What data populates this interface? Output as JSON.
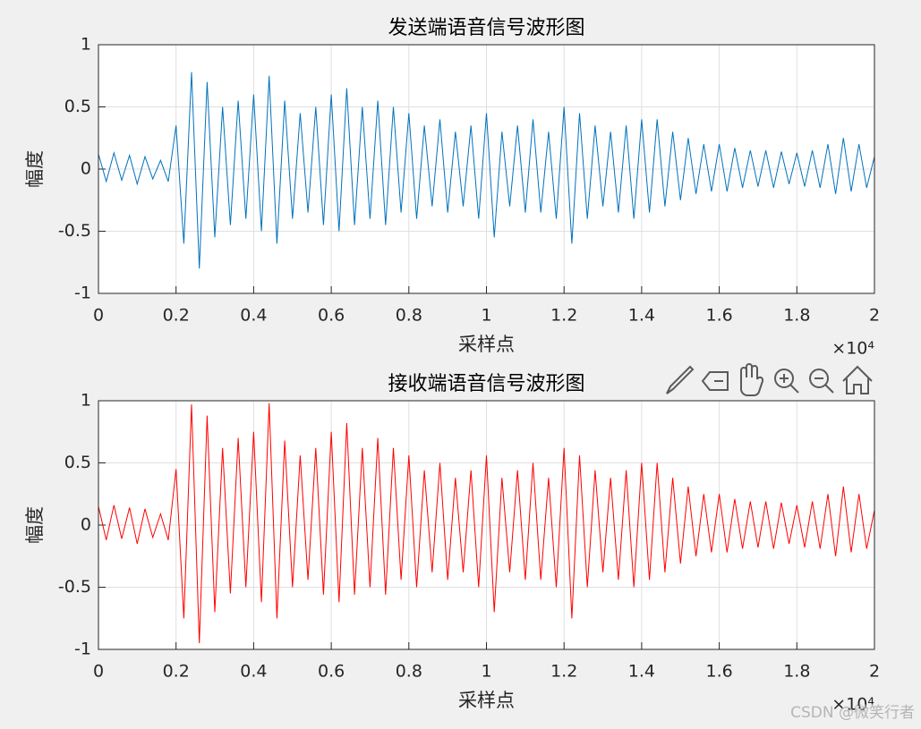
{
  "chart_data": [
    {
      "type": "line",
      "title": "发送端语音信号波形图",
      "x_label": "采样点",
      "y_label": "幅度",
      "x_multiplier": "×10⁴",
      "grid": true,
      "xlim": [
        0,
        20000
      ],
      "ylim": [
        -1,
        1
      ],
      "xticks": [
        0,
        {
          "value": 2000,
          "label": "0.2"
        },
        {
          "value": 4000,
          "label": "0.4"
        },
        {
          "value": 6000,
          "label": "0.6"
        },
        {
          "value": 8000,
          "label": "0.8"
        },
        {
          "value": 10000,
          "label": "1"
        },
        {
          "value": 12000,
          "label": "1.2"
        },
        {
          "value": 14000,
          "label": "1.4"
        },
        {
          "value": 16000,
          "label": "1.6"
        },
        {
          "value": 18000,
          "label": "1.8"
        },
        {
          "value": 20000,
          "label": "2"
        }
      ],
      "yticks": [
        -1,
        -0.5,
        0,
        0.5,
        1
      ],
      "x": [
        0,
        200,
        400,
        600,
        800,
        1000,
        1200,
        1400,
        1600,
        1800,
        2000,
        2200,
        2400,
        2600,
        2800,
        3000,
        3200,
        3400,
        3600,
        3800,
        4000,
        4200,
        4400,
        4600,
        4800,
        5000,
        5200,
        5400,
        5600,
        5800,
        6000,
        6200,
        6400,
        6600,
        6800,
        7000,
        7200,
        7400,
        7600,
        7800,
        8000,
        8200,
        8400,
        8600,
        8800,
        9000,
        9200,
        9400,
        9600,
        9800,
        10000,
        10200,
        10400,
        10600,
        10800,
        11000,
        11200,
        11400,
        11600,
        11800,
        12000,
        12200,
        12400,
        12600,
        12800,
        13000,
        13200,
        13400,
        13600,
        13800,
        14000,
        14200,
        14400,
        14600,
        14800,
        15000,
        15200,
        15400,
        15600,
        15800,
        16000,
        16200,
        16400,
        16600,
        16800,
        17000,
        17200,
        17400,
        17600,
        17800,
        18000,
        18200,
        18400,
        18600,
        18800,
        19000,
        19200,
        19400,
        19600,
        19800,
        20000
      ],
      "series": [
        {
          "color": "#0072bd",
          "values": [
            0.12,
            -0.1,
            0.13,
            -0.09,
            0.11,
            -0.12,
            0.1,
            -0.08,
            0.07,
            -0.1,
            0.35,
            -0.6,
            0.78,
            -0.8,
            0.7,
            -0.55,
            0.5,
            -0.45,
            0.55,
            -0.4,
            0.6,
            -0.5,
            0.75,
            -0.6,
            0.55,
            -0.4,
            0.45,
            -0.35,
            0.5,
            -0.45,
            0.6,
            -0.5,
            0.65,
            -0.45,
            0.5,
            -0.4,
            0.55,
            -0.45,
            0.5,
            -0.35,
            0.45,
            -0.4,
            0.35,
            -0.3,
            0.4,
            -0.35,
            0.3,
            -0.3,
            0.35,
            -0.4,
            0.45,
            -0.55,
            0.3,
            -0.3,
            0.35,
            -0.35,
            0.4,
            -0.35,
            0.3,
            -0.4,
            0.5,
            -0.6,
            0.45,
            -0.4,
            0.35,
            -0.3,
            0.3,
            -0.35,
            0.35,
            -0.4,
            0.4,
            -0.35,
            0.4,
            -0.3,
            0.3,
            -0.25,
            0.25,
            -0.2,
            0.2,
            -0.18,
            0.2,
            -0.18,
            0.17,
            -0.15,
            0.15,
            -0.14,
            0.15,
            -0.15,
            0.14,
            -0.12,
            0.13,
            -0.14,
            0.15,
            -0.15,
            0.2,
            -0.2,
            0.25,
            -0.18,
            0.2,
            -0.15,
            0.1
          ]
        }
      ]
    },
    {
      "type": "line",
      "title": "接收端语音信号波形图",
      "x_label": "采样点",
      "y_label": "幅度",
      "x_multiplier": "×10⁴",
      "grid": true,
      "xlim": [
        0,
        20000
      ],
      "ylim": [
        -1,
        1
      ],
      "xticks": [
        0,
        {
          "value": 2000,
          "label": "0.2"
        },
        {
          "value": 4000,
          "label": "0.4"
        },
        {
          "value": 6000,
          "label": "0.6"
        },
        {
          "value": 8000,
          "label": "0.8"
        },
        {
          "value": 10000,
          "label": "1"
        },
        {
          "value": 12000,
          "label": "1.2"
        },
        {
          "value": 14000,
          "label": "1.4"
        },
        {
          "value": 16000,
          "label": "1.6"
        },
        {
          "value": 18000,
          "label": "1.8"
        },
        {
          "value": 20000,
          "label": "2"
        }
      ],
      "yticks": [
        -1,
        -0.5,
        0,
        0.5,
        1
      ],
      "x": [
        0,
        200,
        400,
        600,
        800,
        1000,
        1200,
        1400,
        1600,
        1800,
        2000,
        2200,
        2400,
        2600,
        2800,
        3000,
        3200,
        3400,
        3600,
        3800,
        4000,
        4200,
        4400,
        4600,
        4800,
        5000,
        5200,
        5400,
        5600,
        5800,
        6000,
        6200,
        6400,
        6600,
        6800,
        7000,
        7200,
        7400,
        7600,
        7800,
        8000,
        8200,
        8400,
        8600,
        8800,
        9000,
        9200,
        9400,
        9600,
        9800,
        10000,
        10200,
        10400,
        10600,
        10800,
        11000,
        11200,
        11400,
        11600,
        11800,
        12000,
        12200,
        12400,
        12600,
        12800,
        13000,
        13200,
        13400,
        13600,
        13800,
        14000,
        14200,
        14400,
        14600,
        14800,
        15000,
        15200,
        15400,
        15600,
        15800,
        16000,
        16200,
        16400,
        16600,
        16800,
        17000,
        17200,
        17400,
        17600,
        17800,
        18000,
        18200,
        18400,
        18600,
        18800,
        19000,
        19200,
        19400,
        19600,
        19800,
        20000
      ],
      "series": [
        {
          "color": "#ff0000",
          "values": [
            0.15,
            -0.12,
            0.16,
            -0.11,
            0.14,
            -0.15,
            0.13,
            -0.1,
            0.09,
            -0.12,
            0.45,
            -0.75,
            0.97,
            -0.95,
            0.88,
            -0.7,
            0.62,
            -0.55,
            0.7,
            -0.5,
            0.75,
            -0.62,
            0.98,
            -0.75,
            0.68,
            -0.5,
            0.56,
            -0.44,
            0.62,
            -0.56,
            0.75,
            -0.62,
            0.82,
            -0.56,
            0.62,
            -0.5,
            0.7,
            -0.56,
            0.62,
            -0.44,
            0.56,
            -0.5,
            0.44,
            -0.38,
            0.5,
            -0.44,
            0.38,
            -0.38,
            0.44,
            -0.5,
            0.56,
            -0.7,
            0.38,
            -0.38,
            0.44,
            -0.44,
            0.5,
            -0.44,
            0.38,
            -0.5,
            0.62,
            -0.75,
            0.56,
            -0.5,
            0.44,
            -0.38,
            0.38,
            -0.44,
            0.44,
            -0.5,
            0.5,
            -0.44,
            0.5,
            -0.38,
            0.38,
            -0.31,
            0.31,
            -0.25,
            0.25,
            -0.22,
            0.25,
            -0.22,
            0.21,
            -0.19,
            0.19,
            -0.18,
            0.19,
            -0.19,
            0.18,
            -0.15,
            0.16,
            -0.18,
            0.19,
            -0.19,
            0.25,
            -0.25,
            0.31,
            -0.22,
            0.25,
            -0.19,
            0.12
          ]
        }
      ]
    }
  ],
  "watermark": "CSDN @微笑行者"
}
